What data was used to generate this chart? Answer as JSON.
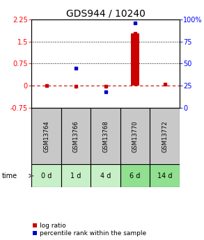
{
  "title": "GDS944 / 10240",
  "samples": [
    "GSM13764",
    "GSM13766",
    "GSM13768",
    "GSM13770",
    "GSM13772"
  ],
  "time_labels": [
    "0 d",
    "1 d",
    "4 d",
    "6 d",
    "14 d"
  ],
  "log_ratio": [
    0.0,
    -0.02,
    -0.02,
    1.78,
    0.05
  ],
  "percentile_rank_pct": [
    null,
    45,
    18,
    96,
    null
  ],
  "ylim_left": [
    -0.75,
    2.25
  ],
  "ylim_right": [
    0,
    100
  ],
  "yticks_left": [
    -0.75,
    0.0,
    0.75,
    1.5,
    2.25
  ],
  "yticks_left_labels": [
    "-0.75",
    "0",
    "0.75",
    "1.5",
    "2.25"
  ],
  "yticks_right": [
    0,
    25,
    50,
    75,
    100
  ],
  "yticks_right_labels": [
    "0",
    "25",
    "50",
    "75",
    "100%"
  ],
  "hlines_dotted": [
    0.75,
    1.5
  ],
  "hline_dashed": 0.0,
  "bar_color": "#cc0000",
  "dot_color_red": "#cc0000",
  "dot_color_blue": "#0000cc",
  "sample_bg_color": "#c8c8c8",
  "time_bg_colors": [
    "#c8f0c8",
    "#c8f0c8",
    "#c8f0c8",
    "#90e090",
    "#90e090"
  ],
  "title_fontsize": 10,
  "tick_fontsize": 7,
  "label_fontsize": 7,
  "legend_fontsize": 6.5
}
